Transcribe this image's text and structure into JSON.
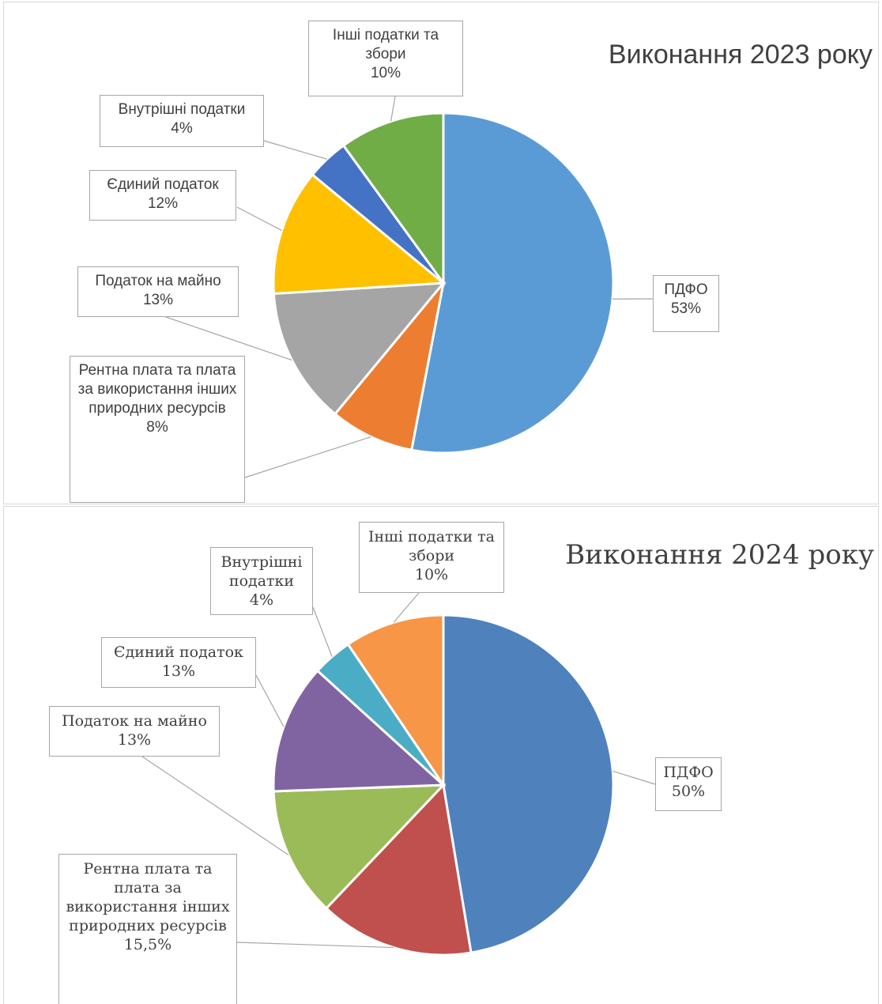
{
  "chart_data": [
    {
      "type": "pie",
      "title": "Виконання 2023 року",
      "categories": [
        "ПДФО",
        "Рентна плата та плата за використання інших природних ресурсів",
        "Податок на майно",
        "Єдиний податок",
        "Внутрішні податки",
        "Інші податки та збори"
      ],
      "values": [
        53,
        8,
        13,
        12,
        4,
        10
      ],
      "value_labels": [
        "53%",
        "8%",
        "13%",
        "12%",
        "4%",
        "10%"
      ],
      "colors": [
        "#5b9bd5",
        "#ed7d31",
        "#a5a5a5",
        "#ffc000",
        "#4472c4",
        "#70ad47"
      ]
    },
    {
      "type": "pie",
      "title": "Виконання 2024 року",
      "categories": [
        "ПДФО",
        "Рентна плата та плата за використання інших природних ресурсів",
        "Податок на майно",
        "Єдиний податок",
        "Внутрішні податки",
        "Інші податки та збори"
      ],
      "values": [
        50,
        15.5,
        13,
        13,
        4,
        10
      ],
      "value_labels": [
        "50%",
        "15,5%",
        "13%",
        "13%",
        "4%",
        "10%"
      ],
      "colors": [
        "#4f81bd",
        "#c0504d",
        "#9bbb59",
        "#8064a2",
        "#4bacc6",
        "#f79646"
      ]
    }
  ]
}
